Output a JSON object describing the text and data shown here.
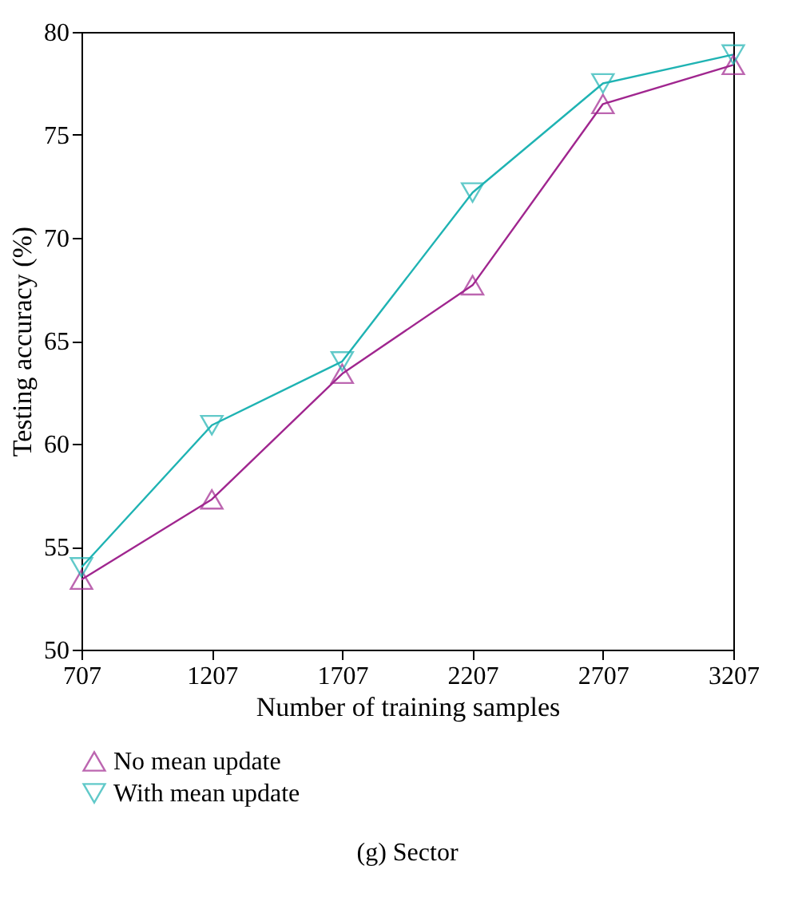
{
  "chart_data": {
    "type": "line",
    "xlabel": "Number of training samples",
    "ylabel": "Testing accuracy (%)",
    "x": [
      707,
      1207,
      1707,
      2207,
      2707,
      3207
    ],
    "series": [
      {
        "name": "No mean update",
        "color": "#a0268f",
        "marker": "triangle",
        "values": [
          53.4,
          57.3,
          63.4,
          67.7,
          76.5,
          78.4
        ]
      },
      {
        "name": "With mean update",
        "color": "#1fb3b3",
        "marker": "triangle-down",
        "values": [
          54.0,
          60.9,
          64.0,
          72.2,
          77.5,
          78.9
        ]
      }
    ],
    "xlim": [
      707,
      3207
    ],
    "xticks": [
      707,
      1207,
      1707,
      2207,
      2707,
      3207
    ],
    "ylim": [
      50,
      80
    ],
    "yticks": [
      50,
      55,
      60,
      65,
      70,
      75,
      80
    ],
    "grid": false,
    "legend": "bottom",
    "line_style": "solid",
    "annotations": [
      "(g) Sector"
    ]
  }
}
